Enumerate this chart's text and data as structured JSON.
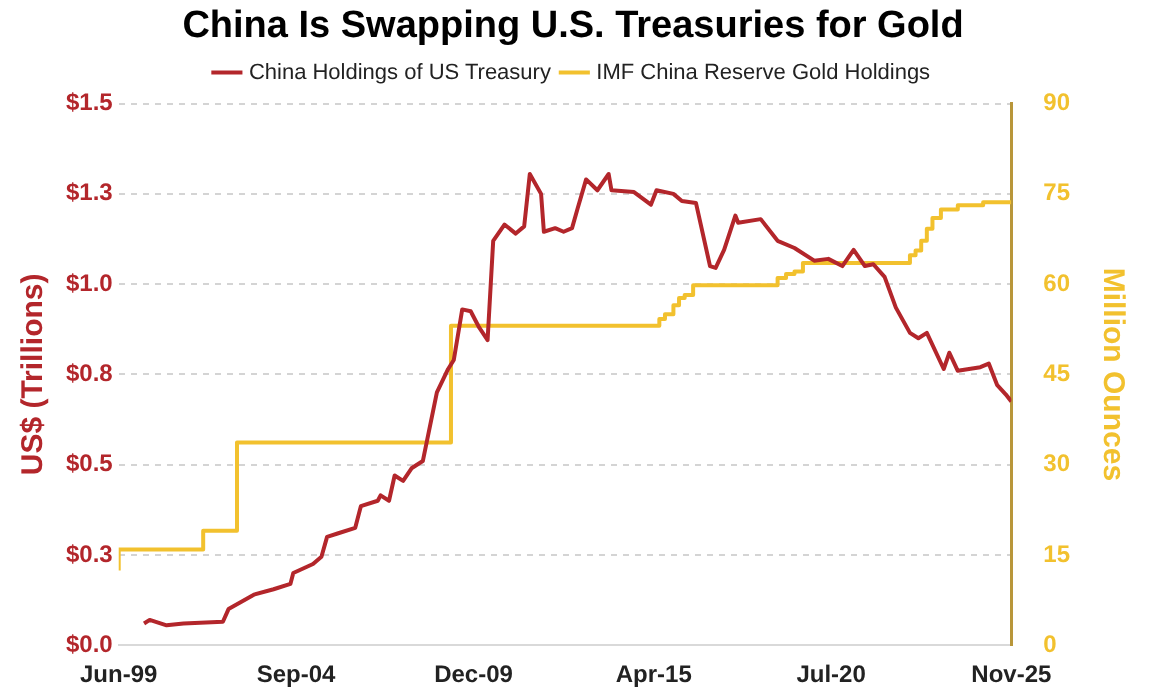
{
  "chart_data": {
    "type": "line",
    "title": "China Is Swapping U.S. Treasuries for Gold",
    "ylabel": "US$ (Trillions)",
    "y2label": "Million Ounces",
    "xlim": [
      "1999-06",
      "2025-11"
    ],
    "xticks": [
      {
        "value": "1999-06",
        "label": "Jun-99"
      },
      {
        "value": "2004-09",
        "label": "Sep-04"
      },
      {
        "value": "2009-12",
        "label": "Dec-09"
      },
      {
        "value": "2015-04",
        "label": "Apr-15"
      },
      {
        "value": "2020-07",
        "label": "Jul-20"
      },
      {
        "value": "2025-11",
        "label": "Nov-25"
      }
    ],
    "ylim": [
      0,
      1.5
    ],
    "yticks": [
      {
        "value": 0,
        "label": "$0.0"
      },
      {
        "value": 0.25,
        "label": "$0.3"
      },
      {
        "value": 0.5,
        "label": "$0.5"
      },
      {
        "value": 0.75,
        "label": "$0.8"
      },
      {
        "value": 1.0,
        "label": "$1.0"
      },
      {
        "value": 1.25,
        "label": "$1.3"
      },
      {
        "value": 1.5,
        "label": "$1.5"
      }
    ],
    "y2lim": [
      0,
      90
    ],
    "y2ticks": [
      0,
      15,
      30,
      45,
      60,
      75,
      90
    ],
    "grid": "y",
    "legend": "top",
    "series": [
      {
        "name": "China Holdings of US Treasury",
        "color": "#b3262b",
        "type": "line",
        "x": [
          "2000-03",
          "2000-05",
          "2000-11",
          "2001-05",
          "2002-07",
          "2002-09",
          "2003-06",
          "2004-01",
          "2004-07",
          "2004-08",
          "2005-03",
          "2005-06",
          "2005-08",
          "2005-12",
          "2006-06",
          "2006-08",
          "2007-02",
          "2007-03",
          "2007-06",
          "2007-08",
          "2007-11",
          "2008-02",
          "2008-06",
          "2008-11",
          "2009-03",
          "2009-05",
          "2009-08",
          "2009-11",
          "2010-02",
          "2010-05",
          "2010-07",
          "2010-11",
          "2011-03",
          "2011-06",
          "2011-08",
          "2011-12",
          "2012-01",
          "2012-05",
          "2012-08",
          "2012-11",
          "2013-01",
          "2013-04",
          "2013-08",
          "2013-12",
          "2014-01",
          "2014-09",
          "2015-03",
          "2015-05",
          "2015-11",
          "2016-02",
          "2016-07",
          "2016-12",
          "2017-02",
          "2017-05",
          "2017-09",
          "2017-10",
          "2018-06",
          "2018-12",
          "2019-06",
          "2020-01",
          "2020-06",
          "2020-11",
          "2021-03",
          "2021-07",
          "2021-10",
          "2022-02",
          "2022-06",
          "2022-11",
          "2023-02",
          "2023-05",
          "2023-11",
          "2024-01",
          "2024-04",
          "2024-12",
          "2025-03",
          "2025-06",
          "2025-09",
          "2025-11"
        ],
        "values": [
          0.06,
          0.07,
          0.055,
          0.06,
          0.065,
          0.1,
          0.14,
          0.155,
          0.17,
          0.2,
          0.225,
          0.245,
          0.3,
          0.31,
          0.325,
          0.385,
          0.4,
          0.415,
          0.4,
          0.47,
          0.455,
          0.49,
          0.51,
          0.7,
          0.765,
          0.79,
          0.93,
          0.925,
          0.88,
          0.845,
          1.12,
          1.165,
          1.14,
          1.16,
          1.305,
          1.25,
          1.145,
          1.155,
          1.145,
          1.155,
          1.21,
          1.29,
          1.26,
          1.305,
          1.26,
          1.255,
          1.22,
          1.26,
          1.25,
          1.23,
          1.225,
          1.05,
          1.045,
          1.095,
          1.19,
          1.17,
          1.18,
          1.12,
          1.1,
          1.065,
          1.07,
          1.05,
          1.095,
          1.05,
          1.055,
          1.02,
          0.935,
          0.865,
          0.85,
          0.865,
          0.765,
          0.81,
          0.76,
          0.77,
          0.78,
          0.72,
          0.695,
          0.675
        ]
      },
      {
        "name": "IMF China Reserve Gold Holdings",
        "color": "#f2c12e",
        "type": "step",
        "axis": "y2",
        "x": [
          "1999-06",
          "2001-12",
          "2002-12",
          "2009-04",
          "2015-06",
          "2015-08",
          "2015-11",
          "2016-01",
          "2016-03",
          "2016-06",
          "2018-12",
          "2019-03",
          "2019-06",
          "2019-09",
          "2022-11",
          "2023-01",
          "2023-03",
          "2023-05",
          "2023-07",
          "2023-10",
          "2024-04",
          "2025-01",
          "2025-06",
          "2025-11"
        ],
        "values": [
          12.4,
          15.9,
          19.0,
          33.7,
          53.1,
          54.2,
          55.0,
          56.5,
          57.7,
          58.2,
          59.8,
          61.0,
          61.7,
          62.1,
          63.5,
          64.8,
          65.6,
          67.2,
          69.2,
          71.0,
          72.4,
          73.1,
          73.6,
          73.6
        ]
      }
    ]
  }
}
